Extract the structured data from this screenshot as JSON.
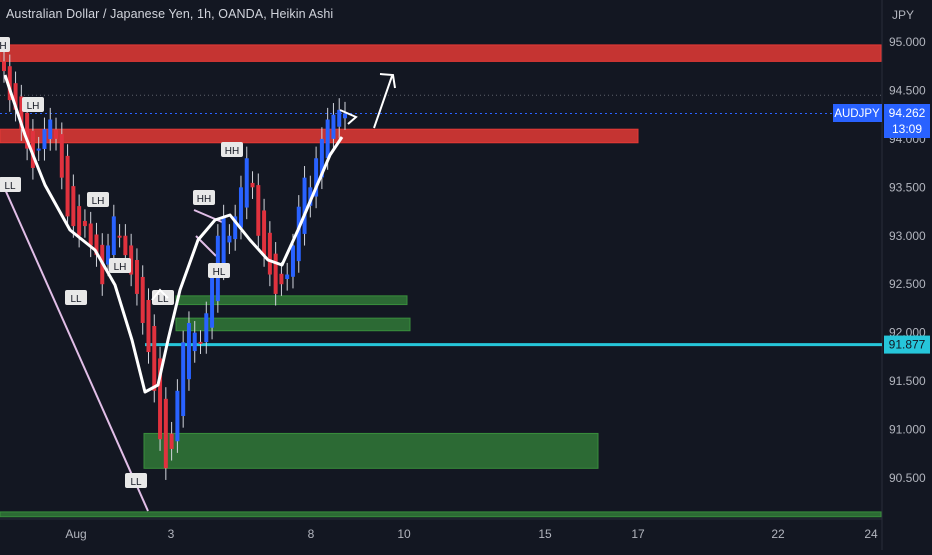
{
  "header": {
    "title": "Australian Dollar / Japanese Yen, 1h, OANDA, Heikin Ashi",
    "currency": "JPY"
  },
  "price_tag": {
    "symbol": "AUDJPY",
    "price": "94.262",
    "countdown": "13:09"
  },
  "level_tag": {
    "price": "91.877"
  },
  "colors": {
    "background": "#131722",
    "up": "#2962ff",
    "down": "#e0323e",
    "red_zone": "#e53935",
    "green_zone": "#388e3c",
    "cyan_line": "#26c6da",
    "trendline": "#e1bee7",
    "ma": "#ffffff",
    "axis_text": "#b2b5be"
  },
  "chart_data": {
    "type": "candlestick",
    "title": "Australian Dollar / Japanese Yen, 1h, OANDA, Heikin Ashi",
    "y_axis": {
      "label": "JPY",
      "range": [
        90.1,
        95.3
      ],
      "ticks": [
        "95.000",
        "94.500",
        "94.000",
        "93.500",
        "93.000",
        "92.500",
        "92.000",
        "91.500",
        "91.000",
        "90.500"
      ]
    },
    "x_axis": {
      "ticks": [
        "Aug",
        "3",
        "8",
        "10",
        "15",
        "17",
        "22",
        "24"
      ]
    },
    "zones": [
      {
        "kind": "resistance",
        "from": 94.8,
        "to": 94.97
      },
      {
        "kind": "resistance",
        "from": 93.96,
        "to": 94.1
      },
      {
        "kind": "support",
        "from": 92.29,
        "to": 92.38
      },
      {
        "kind": "support",
        "from": 92.02,
        "to": 92.15
      },
      {
        "kind": "support",
        "from": 90.6,
        "to": 90.96
      },
      {
        "kind": "support",
        "from": 90.1,
        "to": 90.15
      }
    ],
    "horizontal_line": 91.877,
    "current_price": 94.262,
    "labels": [
      {
        "text": "H",
        "price": 95.0
      },
      {
        "text": "LH",
        "price": 94.3
      },
      {
        "text": "LL",
        "price": 93.5
      },
      {
        "text": "LH",
        "price": 93.35
      },
      {
        "text": "LL",
        "price": 92.37
      },
      {
        "text": "LH",
        "price": 92.7
      },
      {
        "text": "LL",
        "price": 90.45
      },
      {
        "text": "LL",
        "price": 92.35
      },
      {
        "text": "HH",
        "price": 93.37
      },
      {
        "text": "HL",
        "price": 92.65
      },
      {
        "text": "HH",
        "price": 93.85
      }
    ],
    "series_ohlc_close": [
      94.7,
      94.4,
      94.3,
      94.1,
      93.9,
      93.7,
      93.9,
      94.1,
      94.2,
      94.0,
      93.6,
      93.2,
      93.1,
      93.0,
      93.1,
      92.9,
      92.8,
      92.5,
      92.9,
      93.2,
      93.0,
      92.8,
      92.6,
      92.4,
      92.1,
      91.8,
      91.4,
      90.9,
      90.6,
      90.8,
      91.4,
      91.9,
      92.1,
      92.0,
      91.9,
      92.2,
      92.6,
      93.0,
      93.2,
      93.0,
      93.2,
      93.5,
      93.8,
      93.5,
      93.0,
      92.8,
      92.6,
      92.4,
      92.5,
      92.6,
      92.9,
      93.3,
      93.6,
      93.5,
      93.8,
      94.0,
      94.2,
      94.25,
      94.3,
      94.262
    ]
  }
}
